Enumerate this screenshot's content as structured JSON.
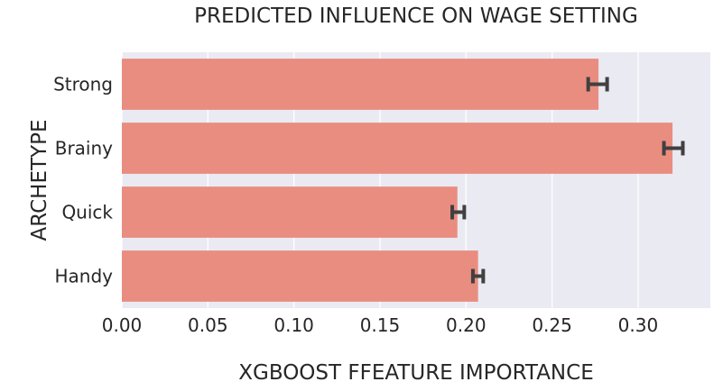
{
  "chart_data": {
    "type": "bar",
    "orientation": "horizontal",
    "title": "PREDICTED INFLUENCE ON WAGE SETTING",
    "xlabel": "XGBOOST FFEATURE IMPORTANCE",
    "ylabel": "ARCHETYPE",
    "categories": [
      "Strong",
      "Brainy",
      "Quick",
      "Handy"
    ],
    "values": [
      0.277,
      0.32,
      0.195,
      0.207
    ],
    "error_low": [
      0.271,
      0.315,
      0.192,
      0.204
    ],
    "error_high": [
      0.282,
      0.326,
      0.199,
      0.21
    ],
    "xlim": [
      0,
      0.342
    ],
    "xticks": [
      0.0,
      0.05,
      0.1,
      0.15,
      0.2,
      0.25,
      0.3
    ],
    "xtick_labels": [
      "0.00",
      "0.05",
      "0.10",
      "0.15",
      "0.20",
      "0.25",
      "0.30"
    ],
    "grid": true,
    "legend": "none",
    "colors": {
      "bar": "#e98d80",
      "plot_background": "#eaeaf2",
      "grid": "#ffffff",
      "error_bar": "#404040",
      "text": "#262626"
    }
  }
}
